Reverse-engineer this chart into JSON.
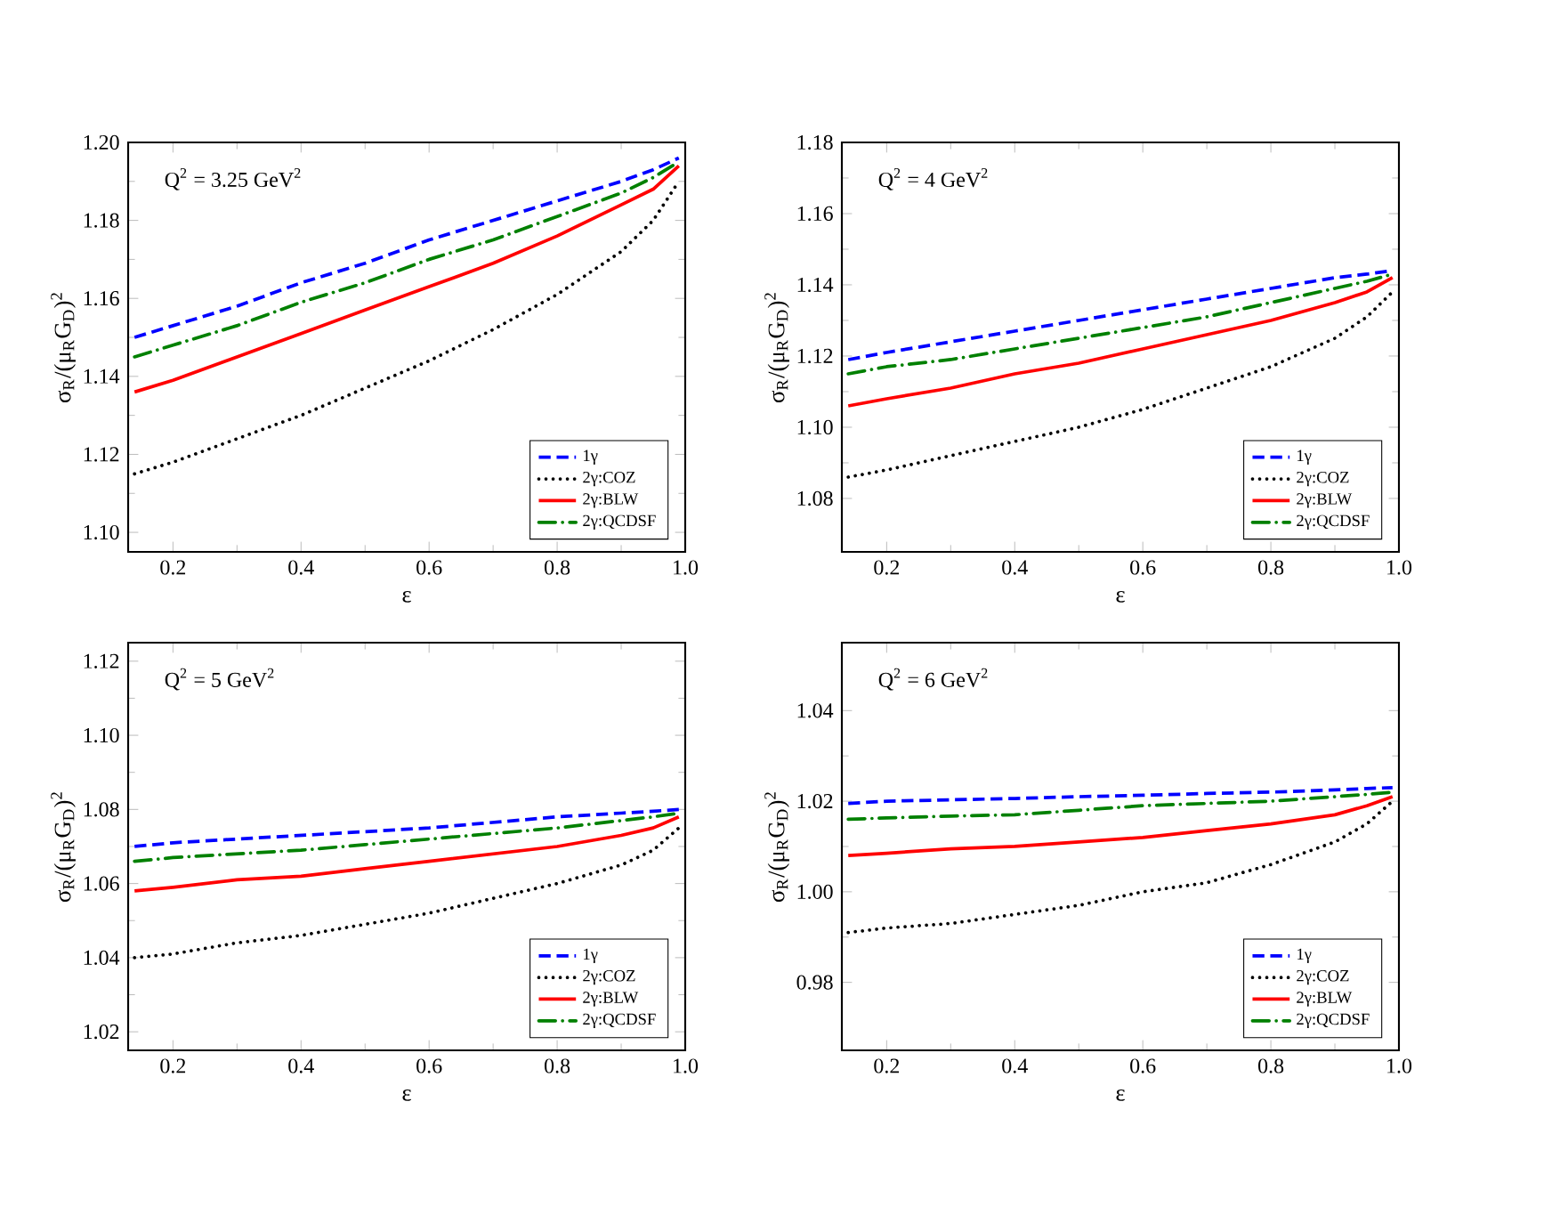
{
  "chart_data": [
    {
      "type": "line",
      "xlabel": "ε",
      "ylabel": "σ$_{R}$/(μ$_{R}$G$_{D}$)$^{2}$",
      "annotations": [
        "Q$^{2}$ = 3.25 GeV$^{2}$"
      ],
      "legend": "bottom right",
      "x": [
        0.14,
        0.2,
        0.3,
        0.4,
        0.5,
        0.6,
        0.7,
        0.8,
        0.9,
        0.95,
        0.99
      ],
      "xlim": [
        0.13,
        1.0
      ],
      "ylim": [
        1.095,
        1.2
      ],
      "xticks": [
        {
          "value": 0.2,
          "label": "0.2"
        },
        {
          "value": 0.4,
          "label": "0.4"
        },
        {
          "value": 0.6,
          "label": "0.6"
        },
        {
          "value": 0.8,
          "label": "0.8"
        },
        {
          "value": 1.0,
          "label": "1.0"
        }
      ],
      "yticks": [
        {
          "value": 1.1,
          "label": "1.10"
        },
        {
          "value": 1.12,
          "label": "1.12"
        },
        {
          "value": 1.14,
          "label": "1.14"
        },
        {
          "value": 1.16,
          "label": "1.16"
        },
        {
          "value": 1.18,
          "label": "1.18"
        },
        {
          "value": 1.2,
          "label": "1.20"
        }
      ],
      "series": [
        {
          "name": "1γ",
          "color": "#0000ff",
          "line_style": "dashed",
          "values": [
            1.15,
            1.153,
            1.158,
            1.164,
            1.169,
            1.175,
            1.18,
            1.185,
            1.19,
            1.193,
            1.196
          ]
        },
        {
          "name": "2γ:COZ",
          "color": "#000000",
          "line_style": "dotted",
          "values": [
            1.115,
            1.118,
            1.124,
            1.13,
            1.137,
            1.144,
            1.152,
            1.161,
            1.172,
            1.18,
            1.19
          ]
        },
        {
          "name": "2γ:BLW",
          "color": "#ff0000",
          "line_style": "solid",
          "values": [
            1.136,
            1.139,
            1.145,
            1.151,
            1.157,
            1.163,
            1.169,
            1.176,
            1.184,
            1.188,
            1.194
          ]
        },
        {
          "name": "2γ:QCDSF",
          "color": "#008000",
          "line_style": "dashdot",
          "values": [
            1.145,
            1.148,
            1.153,
            1.159,
            1.164,
            1.17,
            1.175,
            1.181,
            1.187,
            1.191,
            1.195
          ]
        }
      ]
    },
    {
      "type": "line",
      "xlabel": "ε",
      "ylabel": "σ$_{R}$/(μ$_{R}$G$_{D}$)$^{2}$",
      "annotations": [
        "Q$^{2}$ = 4 GeV$^{2}$"
      ],
      "legend": "bottom right",
      "x": [
        0.14,
        0.2,
        0.3,
        0.4,
        0.5,
        0.6,
        0.7,
        0.8,
        0.9,
        0.95,
        0.99
      ],
      "xlim": [
        0.13,
        1.0
      ],
      "ylim": [
        1.065,
        1.18
      ],
      "xticks": [
        {
          "value": 0.2,
          "label": "0.2"
        },
        {
          "value": 0.4,
          "label": "0.4"
        },
        {
          "value": 0.6,
          "label": "0.6"
        },
        {
          "value": 0.8,
          "label": "0.8"
        },
        {
          "value": 1.0,
          "label": "1.0"
        }
      ],
      "yticks": [
        {
          "value": 1.08,
          "label": "1.08"
        },
        {
          "value": 1.1,
          "label": "1.10"
        },
        {
          "value": 1.12,
          "label": "1.12"
        },
        {
          "value": 1.14,
          "label": "1.14"
        },
        {
          "value": 1.16,
          "label": "1.16"
        },
        {
          "value": 1.18,
          "label": "1.18"
        }
      ],
      "series": [
        {
          "name": "1γ",
          "color": "#0000ff",
          "line_style": "dashed",
          "values": [
            1.119,
            1.121,
            1.124,
            1.127,
            1.13,
            1.133,
            1.136,
            1.139,
            1.142,
            1.143,
            1.144
          ]
        },
        {
          "name": "2γ:COZ",
          "color": "#000000",
          "line_style": "dotted",
          "values": [
            1.086,
            1.088,
            1.092,
            1.096,
            1.1,
            1.105,
            1.111,
            1.117,
            1.125,
            1.131,
            1.138
          ]
        },
        {
          "name": "2γ:BLW",
          "color": "#ff0000",
          "line_style": "solid",
          "values": [
            1.106,
            1.108,
            1.111,
            1.115,
            1.118,
            1.122,
            1.126,
            1.13,
            1.135,
            1.138,
            1.142
          ]
        },
        {
          "name": "2γ:QCDSF",
          "color": "#008000",
          "line_style": "dashdot",
          "values": [
            1.115,
            1.117,
            1.119,
            1.122,
            1.125,
            1.128,
            1.131,
            1.135,
            1.139,
            1.141,
            1.143
          ]
        }
      ]
    },
    {
      "type": "line",
      "xlabel": "ε",
      "ylabel": "σ$_{R}$/(μ$_{R}$G$_{D}$)$^{2}$",
      "annotations": [
        "Q$^{2}$ = 5 GeV$^{2}$"
      ],
      "legend": "bottom right",
      "x": [
        0.14,
        0.2,
        0.3,
        0.4,
        0.5,
        0.6,
        0.7,
        0.8,
        0.9,
        0.95,
        0.99
      ],
      "xlim": [
        0.13,
        1.0
      ],
      "ylim": [
        1.015,
        1.125
      ],
      "xticks": [
        {
          "value": 0.2,
          "label": "0.2"
        },
        {
          "value": 0.4,
          "label": "0.4"
        },
        {
          "value": 0.6,
          "label": "0.6"
        },
        {
          "value": 0.8,
          "label": "0.8"
        },
        {
          "value": 1.0,
          "label": "1.0"
        }
      ],
      "yticks": [
        {
          "value": 1.02,
          "label": "1.02"
        },
        {
          "value": 1.04,
          "label": "1.04"
        },
        {
          "value": 1.06,
          "label": "1.06"
        },
        {
          "value": 1.08,
          "label": "1.08"
        },
        {
          "value": 1.1,
          "label": "1.10"
        },
        {
          "value": 1.12,
          "label": "1.12"
        }
      ],
      "series": [
        {
          "name": "1γ",
          "color": "#0000ff",
          "line_style": "dashed",
          "values": [
            1.07,
            1.071,
            1.072,
            1.073,
            1.074,
            1.075,
            1.0765,
            1.078,
            1.079,
            1.0795,
            1.08
          ]
        },
        {
          "name": "2γ:COZ",
          "color": "#000000",
          "line_style": "dotted",
          "values": [
            1.04,
            1.041,
            1.044,
            1.046,
            1.049,
            1.052,
            1.056,
            1.06,
            1.065,
            1.069,
            1.075
          ]
        },
        {
          "name": "2γ:BLW",
          "color": "#ff0000",
          "line_style": "solid",
          "values": [
            1.058,
            1.059,
            1.061,
            1.062,
            1.064,
            1.066,
            1.068,
            1.07,
            1.073,
            1.075,
            1.078
          ]
        },
        {
          "name": "2γ:QCDSF",
          "color": "#008000",
          "line_style": "dashdot",
          "values": [
            1.066,
            1.067,
            1.068,
            1.069,
            1.0705,
            1.072,
            1.0735,
            1.075,
            1.077,
            1.078,
            1.079
          ]
        }
      ]
    },
    {
      "type": "line",
      "xlabel": "ε",
      "ylabel": "σ$_{R}$/(μ$_{R}$G$_{D}$)$^{2}$",
      "annotations": [
        "Q$^{2}$ = 6 GeV$^{2}$"
      ],
      "legend": "bottom right",
      "x": [
        0.14,
        0.2,
        0.3,
        0.4,
        0.5,
        0.6,
        0.7,
        0.8,
        0.9,
        0.95,
        0.99
      ],
      "xlim": [
        0.13,
        1.0
      ],
      "ylim": [
        0.965,
        1.055
      ],
      "xticks": [
        {
          "value": 0.2,
          "label": "0.2"
        },
        {
          "value": 0.4,
          "label": "0.4"
        },
        {
          "value": 0.6,
          "label": "0.6"
        },
        {
          "value": 0.8,
          "label": "0.8"
        },
        {
          "value": 1.0,
          "label": "1.0"
        }
      ],
      "yticks": [
        {
          "value": 0.98,
          "label": "0.98"
        },
        {
          "value": 1.0,
          "label": "1.00"
        },
        {
          "value": 1.02,
          "label": "1.02"
        },
        {
          "value": 1.04,
          "label": "1.04"
        }
      ],
      "series": [
        {
          "name": "1γ",
          "color": "#0000ff",
          "line_style": "dashed",
          "values": [
            1.0195,
            1.02,
            1.0203,
            1.0206,
            1.021,
            1.0213,
            1.0217,
            1.022,
            1.0225,
            1.0228,
            1.023
          ]
        },
        {
          "name": "2γ:COZ",
          "color": "#000000",
          "line_style": "dotted",
          "values": [
            0.991,
            0.992,
            0.993,
            0.995,
            0.997,
            1.0,
            1.002,
            1.006,
            1.011,
            1.015,
            1.02
          ]
        },
        {
          "name": "2γ:BLW",
          "color": "#ff0000",
          "line_style": "solid",
          "values": [
            1.008,
            1.0085,
            1.0095,
            1.01,
            1.011,
            1.012,
            1.0135,
            1.015,
            1.017,
            1.019,
            1.021
          ]
        },
        {
          "name": "2γ:QCDSF",
          "color": "#008000",
          "line_style": "dashdot",
          "values": [
            1.016,
            1.0163,
            1.0167,
            1.017,
            1.018,
            1.019,
            1.0195,
            1.02,
            1.021,
            1.0215,
            1.022
          ]
        }
      ]
    }
  ]
}
